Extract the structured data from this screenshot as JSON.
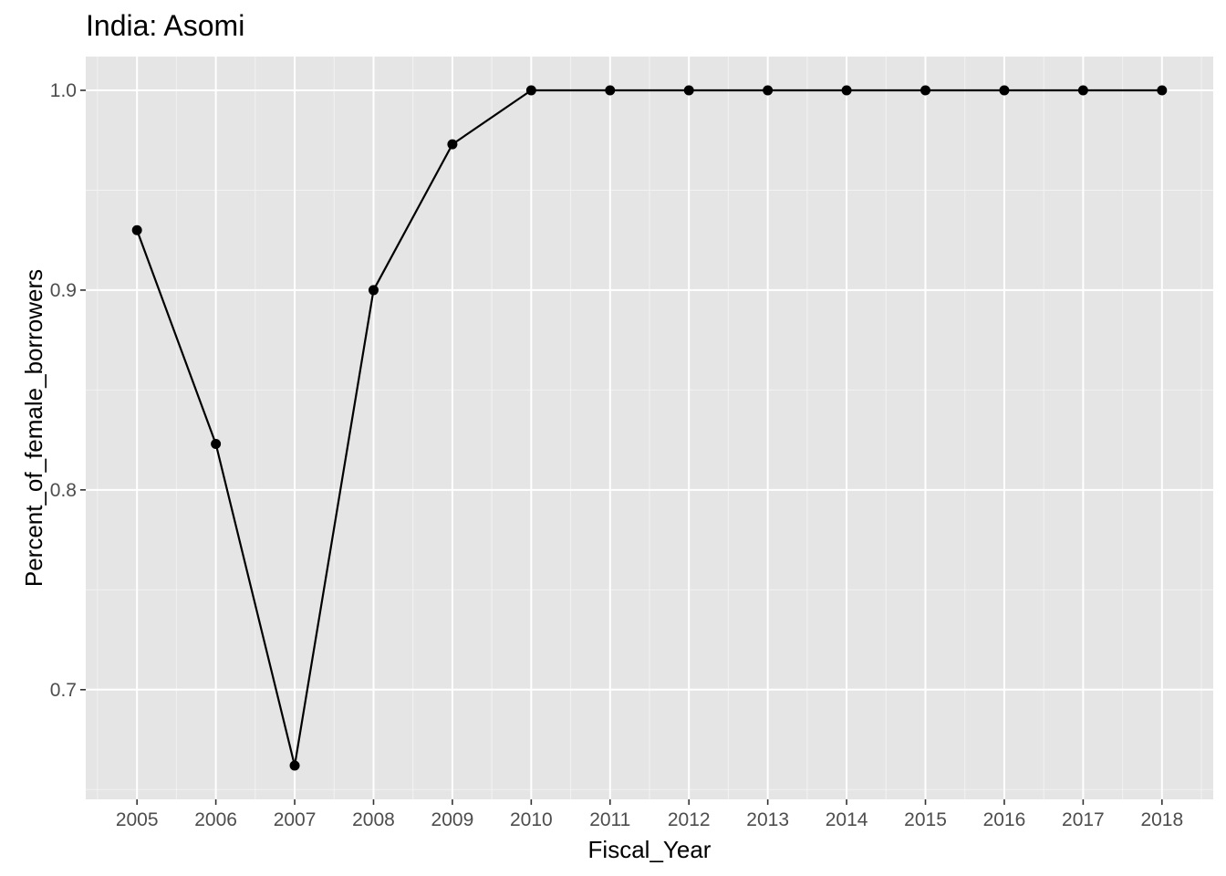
{
  "chart_data": {
    "type": "line",
    "title": "India:  Asomi",
    "xlabel": "Fiscal_Year",
    "ylabel": "Percent_of_female_borrowers",
    "x": [
      2005,
      2006,
      2007,
      2008,
      2009,
      2010,
      2011,
      2012,
      2013,
      2014,
      2015,
      2016,
      2017,
      2018
    ],
    "series": [
      {
        "values": [
          0.93,
          0.823,
          0.662,
          0.9,
          0.973,
          1.0,
          1.0,
          1.0,
          1.0,
          1.0,
          1.0,
          1.0,
          1.0,
          1.0
        ]
      }
    ],
    "x_ticks": [
      "2005",
      "2006",
      "2007",
      "2008",
      "2009",
      "2010",
      "2011",
      "2012",
      "2013",
      "2014",
      "2015",
      "2016",
      "2017",
      "2018"
    ],
    "y_ticks": [
      "0.7",
      "0.8",
      "0.9",
      "1.0"
    ],
    "xlim": [
      2004.35,
      2018.65
    ],
    "ylim": [
      0.6451,
      1.0169
    ],
    "grid": true,
    "legend": "none",
    "colors": {
      "panel": "#e5e5e5",
      "grid_major": "#ffffff",
      "grid_minor": "#f2f2f2",
      "line": "#000000",
      "point": "#000000",
      "tick_text": "#4d4d4d"
    }
  }
}
